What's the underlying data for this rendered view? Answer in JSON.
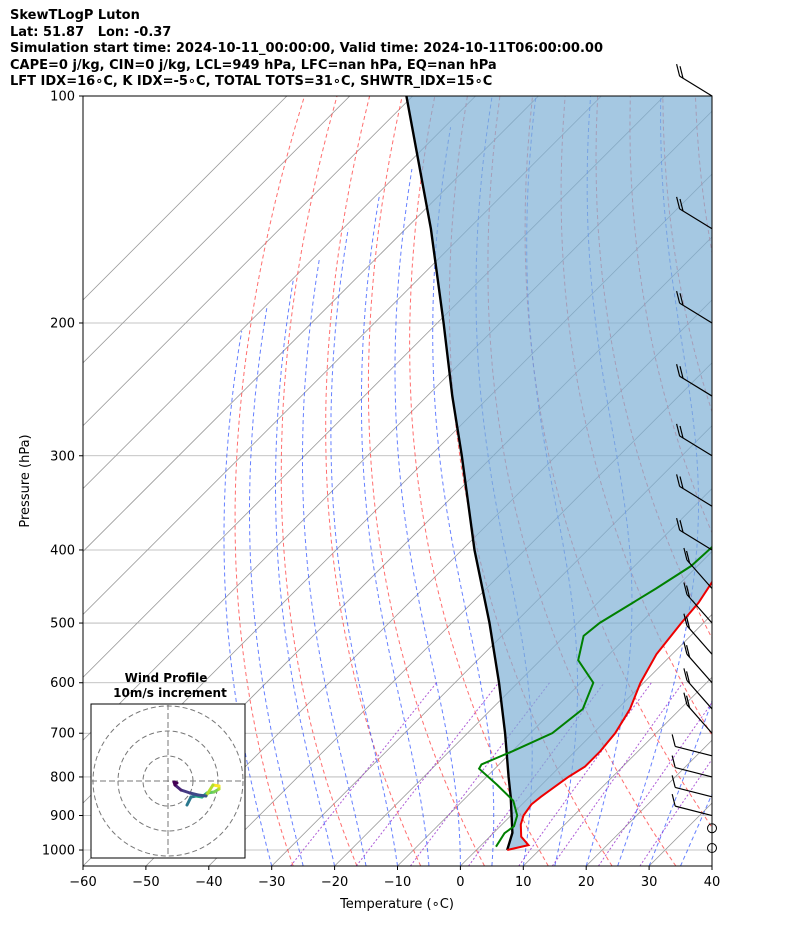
{
  "header": {
    "line1": "SkewTLogP Luton",
    "line2": "Lat: 51.87   Lon: -0.37",
    "line3": "Simulation start time: 2024-10-11_00:00:00, Valid time: 2024-10-11T06:00:00.00",
    "line4": "CAPE=0 j/kg, CIN=0 j/kg, LCL=949 hPa, LFC=nan hPa, EQ=nan hPa",
    "line5": "LFT IDX=16∘C, K IDX=-5∘C, TOTAL TOTS=31∘C, SHWTR_IDX=15∘C"
  },
  "colors": {
    "temperature": "#ee0000",
    "dewpoint": "#008000",
    "parcel": "#000000",
    "shading": "#7fb0d6",
    "dry_adiabat": "#ff5555",
    "moist_adiabat": "#3355ff",
    "mixing_ratio": "#9932cc",
    "isotherm": "#999999"
  },
  "chart_data": {
    "type": "line",
    "title": "",
    "xlabel": "Temperature (∘C)",
    "ylabel": "Pressure (hPa)",
    "xlim": [
      -60,
      40
    ],
    "ylim": [
      1050,
      100
    ],
    "y_scale": "log",
    "x_ticks": [
      "−60",
      "−50",
      "−40",
      "−30",
      "−20",
      "−10",
      "0",
      "10",
      "20",
      "30",
      "40"
    ],
    "y_ticks": [
      "100",
      "200",
      "300",
      "400",
      "500",
      "600",
      "700",
      "800",
      "900",
      "1000"
    ],
    "grid": true,
    "series": [
      {
        "key": "temperature",
        "points": [
          [
            1000,
            4.9
          ],
          [
            985,
            7.5
          ],
          [
            960,
            5.0
          ],
          [
            925,
            3.0
          ],
          [
            900,
            2.0
          ],
          [
            870,
            1.5
          ],
          [
            850,
            1.8
          ],
          [
            800,
            3.0
          ],
          [
            775,
            4.0
          ],
          [
            740,
            4.0
          ],
          [
            700,
            3.5
          ],
          [
            650,
            2.0
          ],
          [
            600,
            -0.5
          ],
          [
            550,
            -2.5
          ],
          [
            500,
            -3.5
          ],
          [
            470,
            -4.0
          ],
          [
            420,
            -6.0
          ],
          [
            380,
            -8.5
          ],
          [
            340,
            -10.0
          ],
          [
            300,
            -11.5
          ],
          [
            250,
            -13.5
          ],
          [
            220,
            -14.0
          ],
          [
            200,
            -13.0
          ],
          [
            170,
            -11.5
          ],
          [
            150,
            -12.5
          ],
          [
            135,
            -13.0
          ],
          [
            120,
            -12.0
          ],
          [
            100,
            -11.0
          ]
        ]
      },
      {
        "key": "dewpoint",
        "points": [
          [
            990,
            2.6
          ],
          [
            950,
            1.8
          ],
          [
            930,
            2.2
          ],
          [
            900,
            1.0
          ],
          [
            860,
            -2.0
          ],
          [
            820,
            -7.0
          ],
          [
            780,
            -12.5
          ],
          [
            770,
            -12.8
          ],
          [
            740,
            -10.0
          ],
          [
            700,
            -6.5
          ],
          [
            650,
            -5.5
          ],
          [
            600,
            -8.0
          ],
          [
            560,
            -14.0
          ],
          [
            520,
            -17.0
          ],
          [
            500,
            -16.5
          ],
          [
            450,
            -13.0
          ],
          [
            420,
            -11.0
          ],
          [
            380,
            -10.5
          ],
          [
            340,
            -11.5
          ],
          [
            300,
            -13.0
          ],
          [
            250,
            -14.0
          ],
          [
            200,
            -14.0
          ],
          [
            170,
            -13.5
          ],
          [
            150,
            -14.5
          ],
          [
            140,
            -16.5
          ],
          [
            120,
            -16.0
          ],
          [
            100,
            -9.0
          ]
        ]
      },
      {
        "key": "parcel",
        "points": [
          [
            1000,
            4.9
          ],
          [
            949,
            3.0
          ],
          [
            850,
            -3.0
          ],
          [
            800,
            -6.5
          ],
          [
            700,
            -14.0
          ],
          [
            600,
            -23.0
          ],
          [
            500,
            -34.0
          ],
          [
            400,
            -48.0
          ],
          [
            300,
            -65.0
          ],
          [
            250,
            -76.0
          ],
          [
            200,
            -89.0
          ],
          [
            150,
            -106.0
          ],
          [
            100,
            -131.0
          ]
        ]
      }
    ],
    "wind_barbs_pressure": [
      1000,
      950,
      900,
      850,
      800,
      750,
      700,
      650,
      600,
      550,
      500,
      450,
      400,
      350,
      300,
      250,
      200,
      150,
      100
    ],
    "hodograph": {
      "title": "Wind Profile",
      "subtitle": "10m/s increment"
    }
  }
}
